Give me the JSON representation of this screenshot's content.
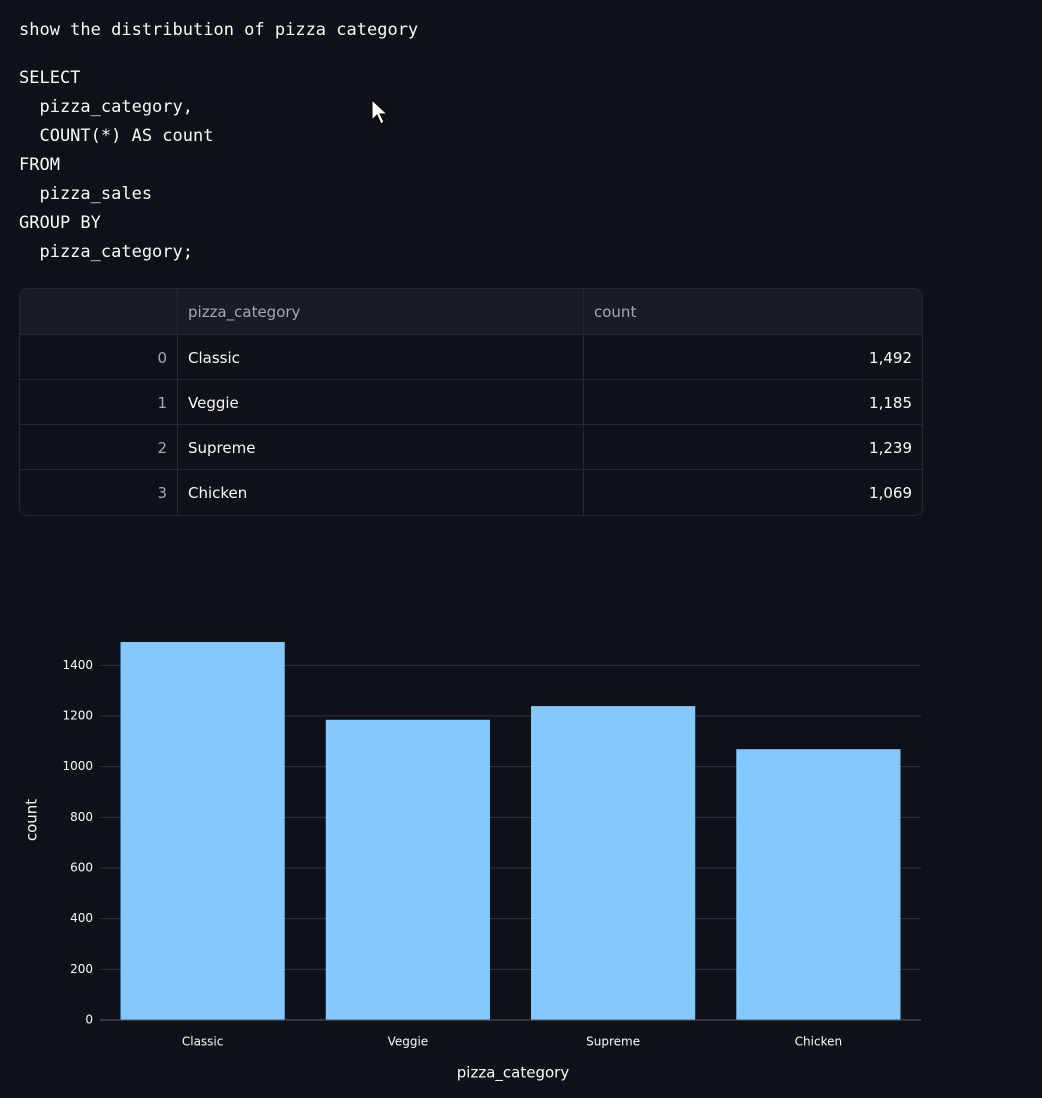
{
  "prompt": "show the distribution of pizza category",
  "sql": [
    "SELECT",
    "  pizza_category,",
    "  COUNT(*) AS count",
    "FROM",
    "  pizza_sales",
    "GROUP BY",
    "  pizza_category;"
  ],
  "table": {
    "columns": [
      "pizza_category",
      "count"
    ],
    "rows": [
      [
        "0",
        "Classic",
        "1,492"
      ],
      [
        "1",
        "Veggie",
        "1,185"
      ],
      [
        "2",
        "Supreme",
        "1,239"
      ],
      [
        "3",
        "Chicken",
        "1,069"
      ]
    ]
  },
  "chart_data": {
    "type": "bar",
    "categories": [
      "Classic",
      "Veggie",
      "Supreme",
      "Chicken"
    ],
    "values": [
      1492,
      1185,
      1239,
      1069
    ],
    "color": "#83c9ff",
    "xlabel": "pizza_category",
    "ylabel": "count",
    "ylim": [
      0,
      1500
    ],
    "yticks": [
      0,
      200,
      400,
      600,
      800,
      1000,
      1200,
      1400
    ],
    "grid": true
  }
}
